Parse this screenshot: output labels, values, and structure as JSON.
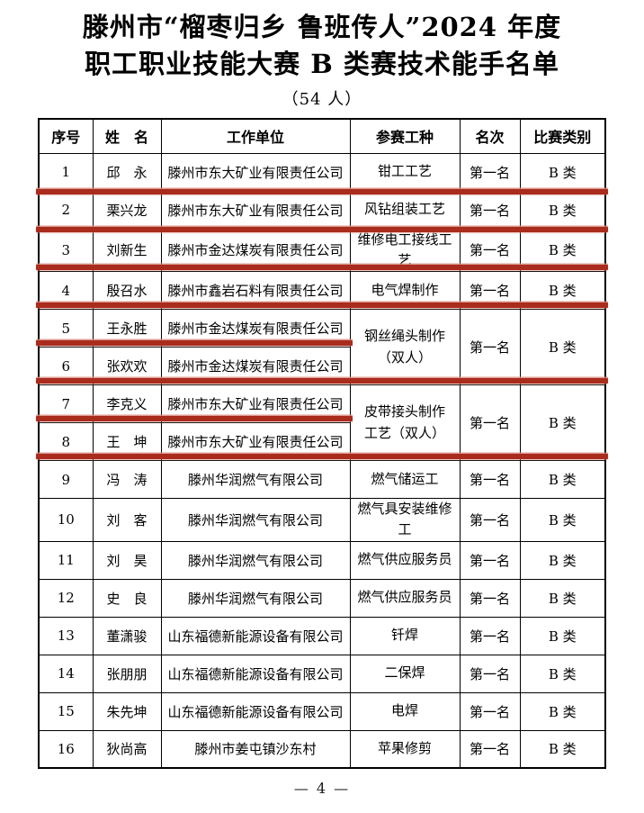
{
  "title": {
    "line1": "滕州市“榴枣归乡 鲁班传人”2024 年度",
    "line2": "职工职业技能大赛 B 类赛技术能手名单",
    "subtitle": "（54 人）"
  },
  "table": {
    "headers": [
      "序号",
      "姓　名",
      "工作单位",
      "参赛工种",
      "名次",
      "比赛类别"
    ],
    "rows": [
      {
        "no": "1",
        "name": "邱　永",
        "company": "滕州市东大矿业有限责任公司",
        "trade": "钳工工艺",
        "rank": "第一名",
        "category": "B 类"
      },
      {
        "no": "2",
        "name": "栗兴龙",
        "company": "滕州市东大矿业有限责任公司",
        "trade": "风钻组装工艺",
        "rank": "第一名",
        "category": "B 类"
      },
      {
        "no": "3",
        "name": "刘新生",
        "company": "滕州市金达煤炭有限责任公司",
        "trade": "维修电工接线工艺",
        "rank": "第一名",
        "category": "B 类"
      },
      {
        "no": "4",
        "name": "殷召水",
        "company": "滕州市鑫岩石料有限责任公司",
        "trade": "电气焊制作",
        "rank": "第一名",
        "category": "B 类"
      },
      {
        "no": "5",
        "name": "王永胜",
        "company": "滕州市金达煤炭有限责任公司",
        "trade": "钢丝绳头制作\n（双人）",
        "rank": "第一名",
        "category": "B 类",
        "span": 2
      },
      {
        "no": "6",
        "name": "张欢欢",
        "company": "滕州市金达煤炭有限责任公司",
        "merged": true
      },
      {
        "no": "7",
        "name": "李克义",
        "company": "滕州市东大矿业有限责任公司",
        "trade": "皮带接头制作\n工艺（双人）",
        "rank": "第一名",
        "category": "B 类",
        "span": 2
      },
      {
        "no": "8",
        "name": "王　坤",
        "company": "滕州市东大矿业有限责任公司",
        "merged": true
      },
      {
        "no": "9",
        "name": "冯　涛",
        "company": "滕州华润燃气有限公司",
        "trade": "燃气储运工",
        "rank": "第一名",
        "category": "B 类"
      },
      {
        "no": "10",
        "name": "刘　客",
        "company": "滕州华润燃气有限公司",
        "trade": "燃气具安装维修工",
        "rank": "第一名",
        "category": "B 类"
      },
      {
        "no": "11",
        "name": "刘　昊",
        "company": "滕州华润燃气有限公司",
        "trade": "燃气供应服务员",
        "rank": "第一名",
        "category": "B 类"
      },
      {
        "no": "12",
        "name": "史　良",
        "company": "滕州华润燃气有限公司",
        "trade": "燃气供应服务员",
        "rank": "第一名",
        "category": "B 类"
      },
      {
        "no": "13",
        "name": "董潇骏",
        "company": "山东福德新能源设备有限公司",
        "trade": "钎焊",
        "rank": "第一名",
        "category": "B 类"
      },
      {
        "no": "14",
        "name": "张朋朋",
        "company": "山东福德新能源设备有限公司",
        "trade": "二保焊",
        "rank": "第一名",
        "category": "B 类"
      },
      {
        "no": "15",
        "name": "朱先坤",
        "company": "山东福德新能源设备有限公司",
        "trade": "电焊",
        "rank": "第一名",
        "category": "B 类"
      },
      {
        "no": "16",
        "name": "狄尚高",
        "company": "滕州市姜屯镇沙东村",
        "trade": "苹果修剪",
        "rank": "第一名",
        "category": "B 类"
      }
    ]
  },
  "annotations": {
    "marks": [
      {
        "after_row": 1,
        "extent": "full"
      },
      {
        "after_row": 2,
        "extent": "full"
      },
      {
        "after_row": 3,
        "extent": "full"
      },
      {
        "after_row": 4,
        "extent": "full"
      },
      {
        "after_row": 5,
        "extent": "partial"
      },
      {
        "after_row": 6,
        "extent": "full"
      },
      {
        "after_row": 7,
        "extent": "partial"
      },
      {
        "after_row": 8,
        "extent": "full"
      }
    ]
  },
  "colors": {
    "mark_red": "#a92c1d",
    "mark_red_light": "#d8897d",
    "text": "#000000"
  },
  "footer": {
    "page_number": "— 4 —"
  }
}
